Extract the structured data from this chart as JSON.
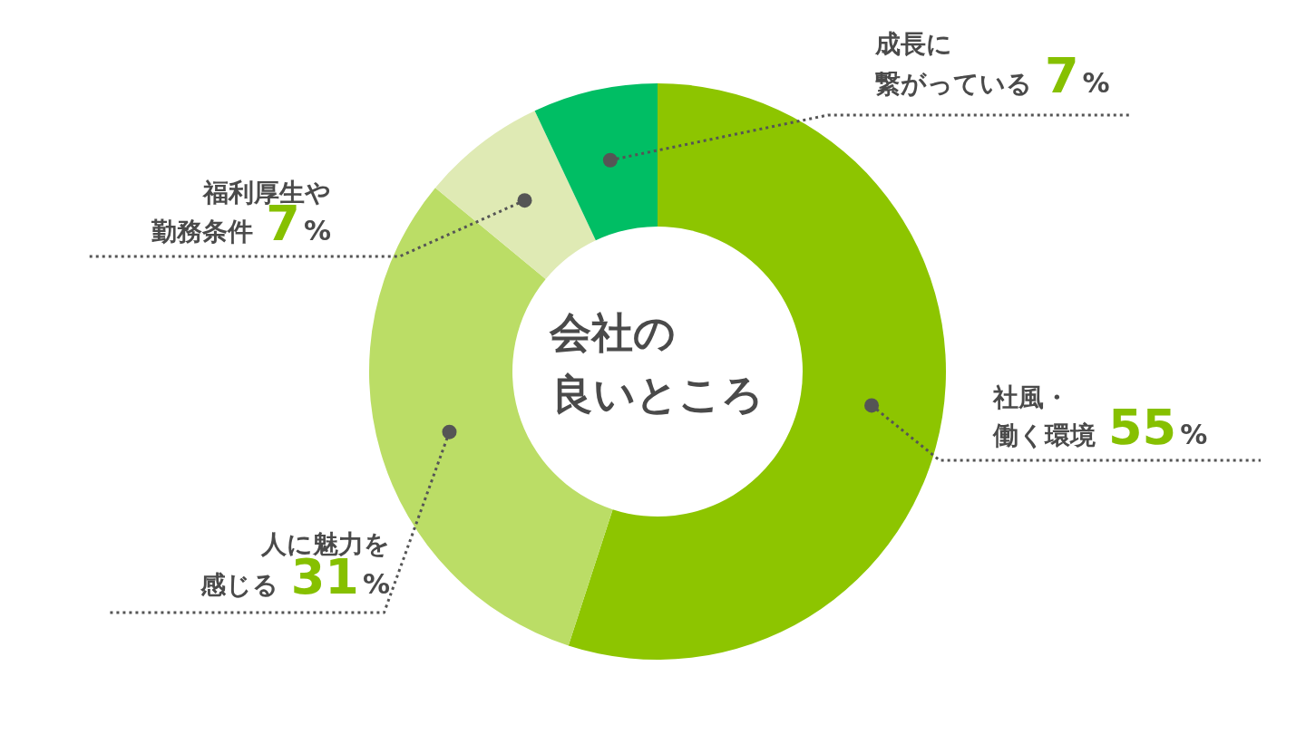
{
  "chart_data": {
    "type": "donut",
    "title": "会社の良いところ",
    "categories": [
      "社風・働く環境",
      "人に魅力を感じる",
      "福利厚生や勤務条件",
      "成長に繋がっている"
    ],
    "values": [
      55,
      31,
      7,
      7
    ],
    "colors": [
      "#8dc500",
      "#bbdd66",
      "#dfeab4",
      "#00be64"
    ],
    "value_labels": [
      "55%",
      "31%",
      "7%",
      "7%"
    ]
  }
}
